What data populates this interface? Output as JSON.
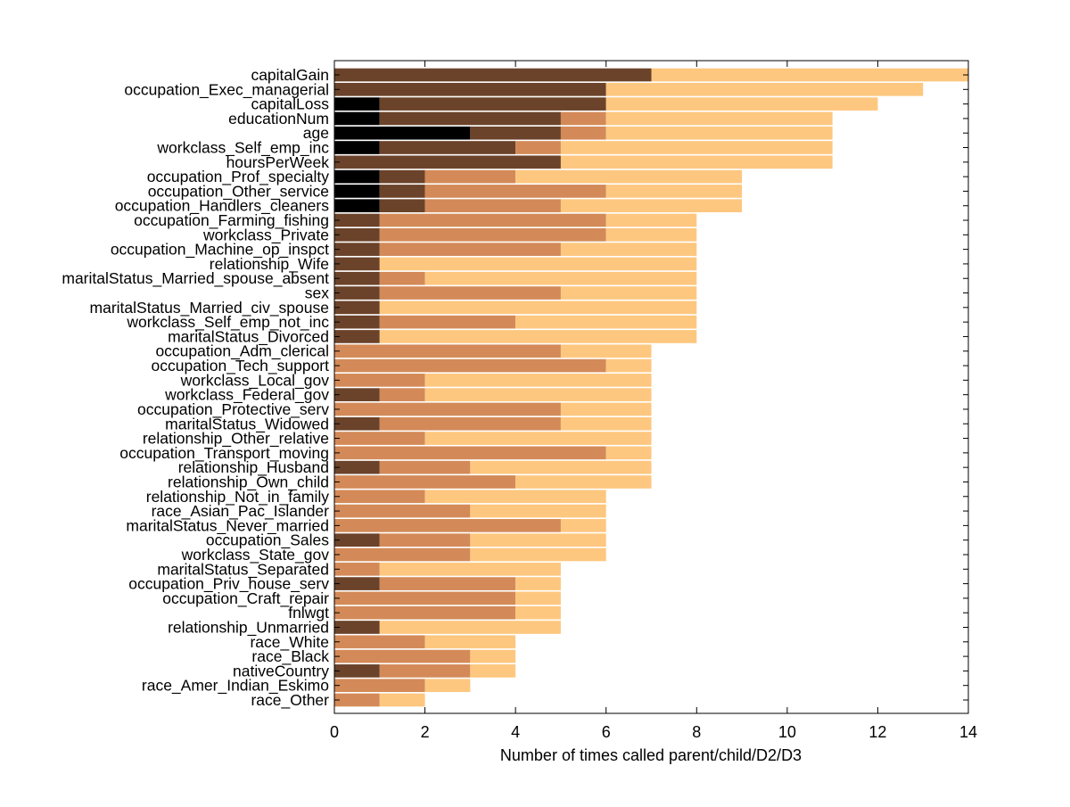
{
  "chart_data": {
    "type": "bar",
    "orientation": "horizontal",
    "stacked": true,
    "title": "",
    "xlabel": "Number of times called parent/child/D2/D3",
    "ylabel": "",
    "xlim": [
      0,
      14
    ],
    "xticks": [
      0,
      2,
      4,
      6,
      8,
      10,
      12,
      14
    ],
    "grid": false,
    "legend": "none",
    "categories": [
      "capitalGain",
      "occupation_Exec_managerial",
      "capitalLoss",
      "educationNum",
      "age",
      "workclass_Self_emp_inc",
      "hoursPerWeek",
      "occupation_Prof_specialty",
      "occupation_Other_service",
      "occupation_Handlers_cleaners",
      "occupation_Farming_fishing",
      "workclass_Private",
      "occupation_Machine_op_inspct",
      "relationship_Wife",
      "maritalStatus_Married_spouse_absent",
      "sex",
      "maritalStatus_Married_civ_spouse",
      "workclass_Self_emp_not_inc",
      "maritalStatus_Divorced",
      "occupation_Adm_clerical",
      "occupation_Tech_support",
      "workclass_Local_gov",
      "workclass_Federal_gov",
      "occupation_Protective_serv",
      "maritalStatus_Widowed",
      "relationship_Other_relative",
      "occupation_Transport_moving",
      "relationship_Husband",
      "relationship_Own_child",
      "relationship_Not_in_family",
      "race_Asian_Pac_Islander",
      "maritalStatus_Never_married",
      "occupation_Sales",
      "workclass_State_gov",
      "maritalStatus_Separated",
      "occupation_Priv_house_serv",
      "occupation_Craft_repair",
      "fnlwgt",
      "relationship_Unmarried",
      "race_White",
      "race_Black",
      "nativeCountry",
      "race_Amer_Indian_Eskimo",
      "race_Other"
    ],
    "series": [
      {
        "color": "#000000",
        "values": [
          0,
          0,
          1,
          1,
          3,
          1,
          0,
          1,
          1,
          1,
          0,
          0,
          0,
          0,
          0,
          0,
          0,
          0,
          0,
          0,
          0,
          0,
          0,
          0,
          0,
          0,
          0,
          0,
          0,
          0,
          0,
          0,
          0,
          0,
          0,
          0,
          0,
          0,
          0,
          0,
          0,
          0,
          0,
          0
        ]
      },
      {
        "color": "#6b432a",
        "values": [
          7,
          6,
          5,
          4,
          2,
          3,
          5,
          1,
          1,
          1,
          1,
          1,
          1,
          1,
          1,
          1,
          1,
          1,
          1,
          0,
          0,
          0,
          1,
          0,
          1,
          0,
          0,
          1,
          0,
          0,
          0,
          0,
          1,
          0,
          0,
          1,
          0,
          0,
          1,
          0,
          0,
          1,
          0,
          0
        ]
      },
      {
        "color": "#d38a58",
        "values": [
          0,
          0,
          0,
          1,
          1,
          1,
          0,
          2,
          4,
          3,
          5,
          5,
          4,
          0,
          1,
          4,
          0,
          3,
          0,
          5,
          6,
          2,
          1,
          5,
          4,
          2,
          6,
          2,
          4,
          2,
          3,
          5,
          2,
          3,
          1,
          3,
          4,
          4,
          0,
          2,
          3,
          2,
          2,
          1
        ]
      },
      {
        "color": "#fec77f",
        "values": [
          7,
          7,
          6,
          5,
          5,
          6,
          6,
          5,
          3,
          4,
          2,
          2,
          3,
          7,
          6,
          3,
          7,
          4,
          7,
          2,
          1,
          5,
          5,
          2,
          2,
          5,
          1,
          4,
          3,
          4,
          3,
          1,
          3,
          3,
          4,
          1,
          1,
          1,
          4,
          2,
          1,
          1,
          1,
          1
        ]
      }
    ]
  }
}
